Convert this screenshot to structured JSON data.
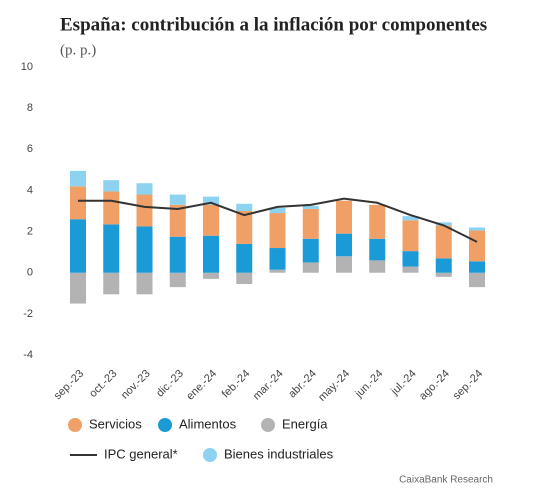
{
  "chart_data": {
    "type": "stacked_bar_line",
    "title": "España: contribución a la inflación por componentes",
    "subtitle": "(p. p.)",
    "source": "CaixaBank Research",
    "categories": [
      "sep.-23",
      "oct.-23",
      "nov.-23",
      "dic.-23",
      "ene.-24",
      "feb.-24",
      "mar.-24",
      "abr.-24",
      "may.-24",
      "jun.-24",
      "jul.-24",
      "ago.-24",
      "sep.-24"
    ],
    "series": [
      {
        "name": "Servicios",
        "color": "#f0a067",
        "type": "bar",
        "values": [
          1.6,
          1.6,
          1.55,
          1.55,
          1.5,
          1.6,
          1.7,
          1.45,
          1.6,
          1.65,
          1.5,
          1.6,
          1.5
        ]
      },
      {
        "name": "Alimentos",
        "color": "#1a9ad6",
        "type": "bar",
        "values": [
          2.6,
          2.35,
          2.25,
          1.75,
          1.8,
          1.4,
          1.05,
          1.15,
          1.1,
          1.05,
          0.75,
          0.7,
          0.55
        ]
      },
      {
        "name": "Energía",
        "color": "#b3b3b3",
        "type": "bar",
        "values": [
          -1.5,
          -1.05,
          -1.05,
          -0.7,
          -0.3,
          -0.55,
          0.15,
          0.5,
          0.8,
          0.6,
          0.3,
          -0.2,
          -0.7
        ]
      },
      {
        "name": "IPC general*",
        "color": "#333333",
        "type": "line",
        "values": [
          3.5,
          3.5,
          3.2,
          3.1,
          3.4,
          2.8,
          3.2,
          3.3,
          3.6,
          3.4,
          2.8,
          2.3,
          1.5
        ]
      },
      {
        "name": "Bienes industriales",
        "color": "#8dd3f1",
        "type": "bar",
        "values": [
          0.75,
          0.55,
          0.55,
          0.5,
          0.4,
          0.35,
          0.25,
          0.15,
          0,
          0,
          0.2,
          0.15,
          0.15
        ]
      }
    ],
    "ylim": [
      -4,
      10
    ],
    "yticks": [
      -4,
      -2,
      0,
      2,
      4,
      6,
      8,
      10
    ],
    "grid": false
  }
}
